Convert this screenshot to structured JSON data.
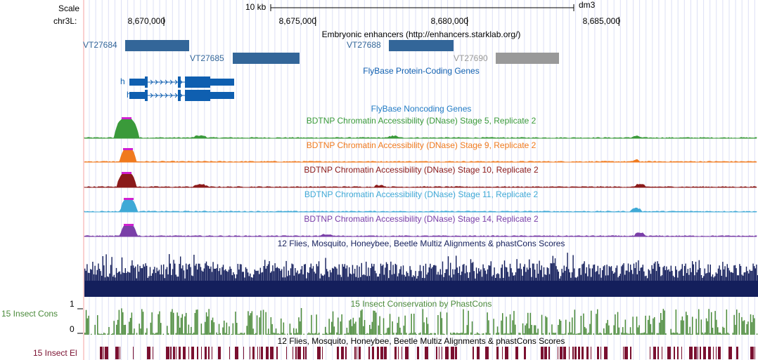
{
  "header": {
    "scale_label": "Scale",
    "chrom_label": "chr3L:",
    "scale_bar_label": "10 kb",
    "assembly": "dm3",
    "ticks": [
      {
        "pos": 8670000,
        "label": "8,670,000"
      },
      {
        "pos": 8675000,
        "label": "8,675,000"
      },
      {
        "pos": 8680000,
        "label": "8,680,000"
      },
      {
        "pos": 8685000,
        "label": "8,685,000"
      }
    ]
  },
  "tracks": {
    "enhancers": {
      "title": "Embryonic enhancers (http://enhancers.starklab.org/)",
      "items": [
        {
          "name": "VT27684",
          "color": "#336699"
        },
        {
          "name": "VT27685",
          "color": "#336699"
        },
        {
          "name": "VT27688",
          "color": "#336699"
        },
        {
          "name": "VT27690",
          "color": "#999999"
        }
      ]
    },
    "genes": {
      "title": "FlyBase Protein-Coding Genes",
      "color": "#0f5fb0",
      "transcripts": [
        {
          "name": "h"
        },
        {
          "name": "h"
        }
      ]
    },
    "noncoding": {
      "title": "FlyBase Noncoding Genes",
      "color": "#1f7ac4"
    },
    "dnase": [
      {
        "title": "BDTNP Chromatin Accessibility (DNase) Stage 5, Replicate 2",
        "color": "#3a9a3a"
      },
      {
        "title": "BDTNP Chromatin Accessibility (DNase) Stage 9, Replicate 2",
        "color": "#f07a1e"
      },
      {
        "title": "BDTNP Chromatin Accessibility (DNase) Stage 10, Replicate 2",
        "color": "#8b1a1a"
      },
      {
        "title": "BDTNP Chromatin Accessibility (DNase) Stage 11, Replicate 2",
        "color": "#3fa9d6"
      },
      {
        "title": "BDTNP Chromatin Accessibility (DNase) Stage 14, Replicate 2",
        "color": "#7a3fa8"
      }
    ],
    "multiz": {
      "title": "12 Flies, Mosquito, Honeybee, Beetle Multiz Alignments & phastCons Scores",
      "color": "#141f5c"
    },
    "cons": {
      "title": "15 Insect Conservation by PhastCons",
      "side_label": "15 Insect Cons",
      "ymax": "1",
      "ymin": "0",
      "color": "#4a8a3a"
    },
    "elements": {
      "title": "12 Flies, Mosquito, Honeybee, Beetle Multiz Alignments & phastCons Scores",
      "side_label": "15 Insect El",
      "color": "#7a1030"
    }
  },
  "colors": {
    "gridline": "#dde0f5",
    "sidebar_line": "#f4a0a0",
    "peak_cap": "#d020d0"
  }
}
